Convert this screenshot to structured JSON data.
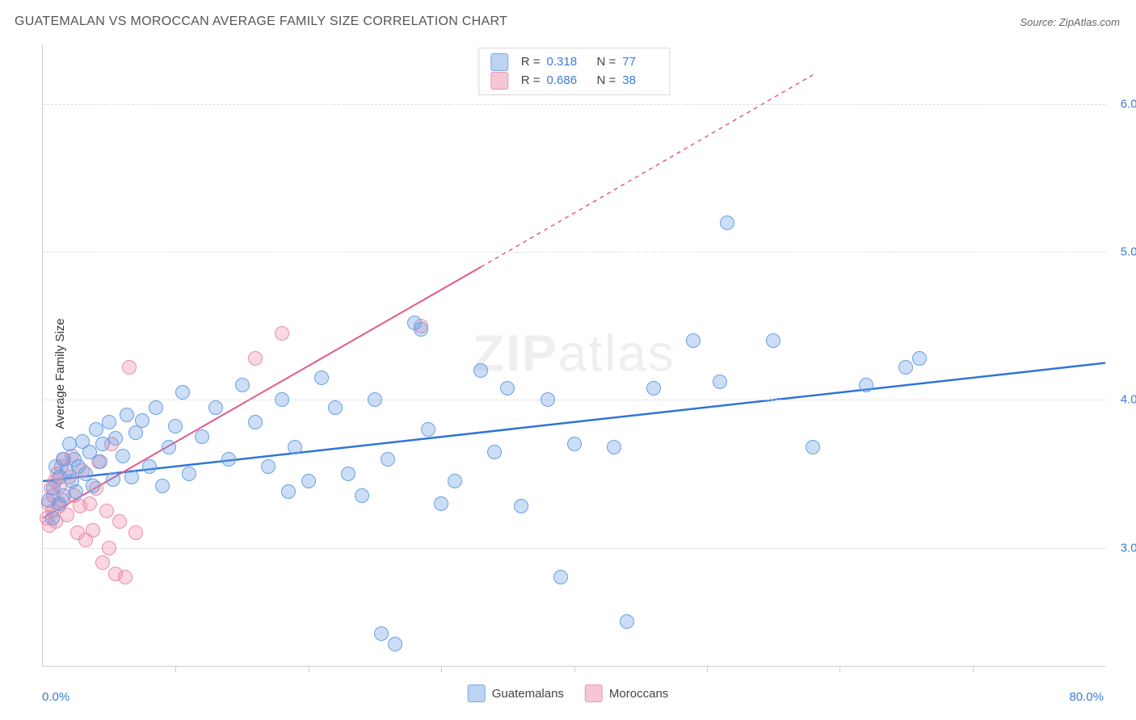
{
  "header": {
    "title": "GUATEMALAN VS MOROCCAN AVERAGE FAMILY SIZE CORRELATION CHART",
    "source_prefix": "Source: ",
    "source_name": "ZipAtlas.com"
  },
  "chart": {
    "type": "scatter",
    "ylabel": "Average Family Size",
    "xlim": [
      0,
      80
    ],
    "ylim": [
      2.2,
      6.4
    ],
    "x_ticks": [
      10,
      20,
      30,
      40,
      50,
      60,
      70
    ],
    "y_gridlines": [
      3.0,
      4.0,
      5.0,
      6.0
    ],
    "y_tick_labels": [
      "3.00",
      "4.00",
      "5.00",
      "6.00"
    ],
    "x_min_label": "0.0%",
    "x_max_label": "80.0%",
    "background_color": "#ffffff",
    "grid_color": "#dddddd",
    "axis_color": "#cccccc",
    "marker_radius": 8,
    "marker_stroke_width": 1.5,
    "watermark": {
      "bold": "ZIP",
      "rest": "atlas"
    }
  },
  "series": {
    "guatemalans": {
      "label": "Guatemalans",
      "fill_color": "rgba(106,160,230,0.35)",
      "stroke_color": "#6aa0e6",
      "swatch_fill": "#bcd4f2",
      "swatch_stroke": "#7aa9e0",
      "R": "0.318",
      "N": "77",
      "trend": {
        "x1": 0,
        "y1": 3.45,
        "x2": 80,
        "y2": 4.25,
        "color": "#2f75d6",
        "width": 2.5,
        "dash": ""
      },
      "points": [
        [
          0.4,
          3.32
        ],
        [
          0.7,
          3.2
        ],
        [
          0.8,
          3.4
        ],
        [
          1.0,
          3.55
        ],
        [
          1.2,
          3.3
        ],
        [
          1.3,
          3.48
        ],
        [
          1.5,
          3.6
        ],
        [
          1.6,
          3.35
        ],
        [
          1.8,
          3.52
        ],
        [
          2.0,
          3.7
        ],
        [
          2.2,
          3.45
        ],
        [
          2.4,
          3.6
        ],
        [
          2.5,
          3.38
        ],
        [
          2.7,
          3.55
        ],
        [
          3.0,
          3.72
        ],
        [
          3.2,
          3.5
        ],
        [
          3.5,
          3.65
        ],
        [
          3.8,
          3.42
        ],
        [
          4.0,
          3.8
        ],
        [
          4.3,
          3.58
        ],
        [
          4.5,
          3.7
        ],
        [
          5.0,
          3.85
        ],
        [
          5.3,
          3.46
        ],
        [
          5.5,
          3.74
        ],
        [
          6.0,
          3.62
        ],
        [
          6.3,
          3.9
        ],
        [
          6.7,
          3.48
        ],
        [
          7.0,
          3.78
        ],
        [
          7.5,
          3.86
        ],
        [
          8.0,
          3.55
        ],
        [
          8.5,
          3.95
        ],
        [
          9.0,
          3.42
        ],
        [
          9.5,
          3.68
        ],
        [
          10.0,
          3.82
        ],
        [
          10.5,
          4.05
        ],
        [
          11.0,
          3.5
        ],
        [
          12.0,
          3.75
        ],
        [
          13.0,
          3.95
        ],
        [
          14.0,
          3.6
        ],
        [
          15.0,
          4.1
        ],
        [
          16.0,
          3.85
        ],
        [
          17.0,
          3.55
        ],
        [
          18.0,
          4.0
        ],
        [
          18.5,
          3.38
        ],
        [
          19.0,
          3.68
        ],
        [
          20.0,
          3.45
        ],
        [
          21.0,
          4.15
        ],
        [
          22.0,
          3.95
        ],
        [
          23.0,
          3.5
        ],
        [
          24.0,
          3.35
        ],
        [
          25.0,
          4.0
        ],
        [
          25.5,
          2.42
        ],
        [
          26.0,
          3.6
        ],
        [
          26.5,
          2.35
        ],
        [
          28.0,
          4.52
        ],
        [
          28.5,
          4.48
        ],
        [
          29.0,
          3.8
        ],
        [
          30.0,
          3.3
        ],
        [
          31.0,
          3.45
        ],
        [
          33.0,
          4.2
        ],
        [
          34.0,
          3.65
        ],
        [
          35.0,
          4.08
        ],
        [
          36.0,
          3.28
        ],
        [
          38.0,
          4.0
        ],
        [
          39.0,
          2.8
        ],
        [
          40.0,
          3.7
        ],
        [
          43.0,
          3.68
        ],
        [
          44.0,
          2.5
        ],
        [
          49.0,
          4.4
        ],
        [
          51.0,
          4.12
        ],
        [
          51.5,
          5.2
        ],
        [
          58.0,
          3.68
        ],
        [
          62.0,
          4.1
        ],
        [
          65.0,
          4.22
        ],
        [
          66.0,
          4.28
        ],
        [
          55.0,
          4.4
        ],
        [
          46.0,
          4.08
        ]
      ]
    },
    "moroccans": {
      "label": "Moroccans",
      "fill_color": "rgba(240,140,170,0.35)",
      "stroke_color": "#e88fab",
      "swatch_fill": "#f6c6d5",
      "swatch_stroke": "#e89ab2",
      "R": "0.686",
      "N": "38",
      "trend": {
        "x1": 0,
        "y1": 3.2,
        "x2": 33,
        "y2": 4.9,
        "extend_x2": 58,
        "extend_y2": 6.2,
        "color": "#e35a86",
        "width": 2,
        "dash": "5,5"
      },
      "points": [
        [
          0.3,
          3.2
        ],
        [
          0.4,
          3.3
        ],
        [
          0.5,
          3.15
        ],
        [
          0.6,
          3.4
        ],
        [
          0.7,
          3.25
        ],
        [
          0.8,
          3.35
        ],
        [
          0.9,
          3.45
        ],
        [
          1.0,
          3.18
        ],
        [
          1.1,
          3.5
        ],
        [
          1.2,
          3.28
        ],
        [
          1.3,
          3.42
        ],
        [
          1.4,
          3.55
        ],
        [
          1.5,
          3.32
        ],
        [
          1.6,
          3.6
        ],
        [
          1.8,
          3.22
        ],
        [
          2.0,
          3.48
        ],
        [
          2.2,
          3.62
        ],
        [
          2.4,
          3.35
        ],
        [
          2.6,
          3.1
        ],
        [
          2.8,
          3.28
        ],
        [
          3.0,
          3.52
        ],
        [
          3.2,
          3.05
        ],
        [
          3.5,
          3.3
        ],
        [
          3.8,
          3.12
        ],
        [
          4.0,
          3.4
        ],
        [
          4.2,
          3.58
        ],
        [
          4.5,
          2.9
        ],
        [
          4.8,
          3.25
        ],
        [
          5.0,
          3.0
        ],
        [
          5.2,
          3.7
        ],
        [
          5.5,
          2.82
        ],
        [
          5.8,
          3.18
        ],
        [
          6.2,
          2.8
        ],
        [
          6.5,
          4.22
        ],
        [
          7.0,
          3.1
        ],
        [
          16.0,
          4.28
        ],
        [
          18.0,
          4.45
        ],
        [
          28.5,
          4.5
        ]
      ]
    }
  },
  "legend": {
    "r_label": "R  =",
    "n_label": "N  ="
  }
}
